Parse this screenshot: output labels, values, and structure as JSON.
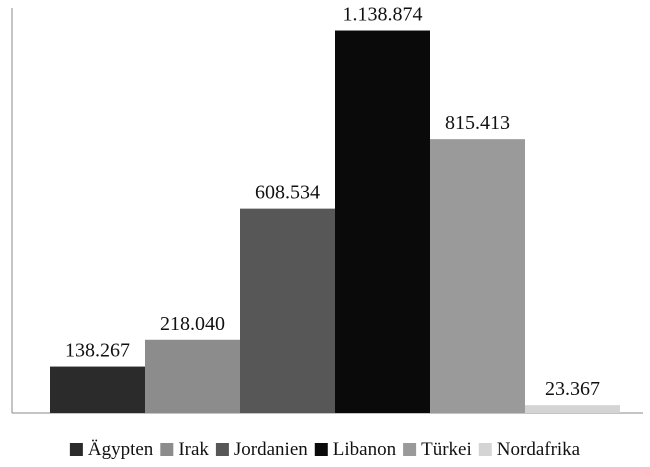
{
  "chart_data": {
    "type": "bar",
    "categories": [
      "Ägypten",
      "Irak",
      "Jordanien",
      "Libanon",
      "Türkei",
      "Nordafrika"
    ],
    "values": [
      138267,
      218040,
      608534,
      1138874,
      815413,
      23367
    ],
    "data_labels": [
      "138.267",
      "218.040",
      "608.534",
      "1.138.874",
      "815.413",
      "23.367"
    ],
    "colors": [
      "#2b2b2b",
      "#8c8c8c",
      "#575757",
      "#0a0a0a",
      "#9a9a9a",
      "#d4d4d4"
    ],
    "ylim": [
      0,
      1200000
    ],
    "grid": false,
    "legend_position": "bottom",
    "title": "",
    "xlabel": "",
    "ylabel": ""
  }
}
